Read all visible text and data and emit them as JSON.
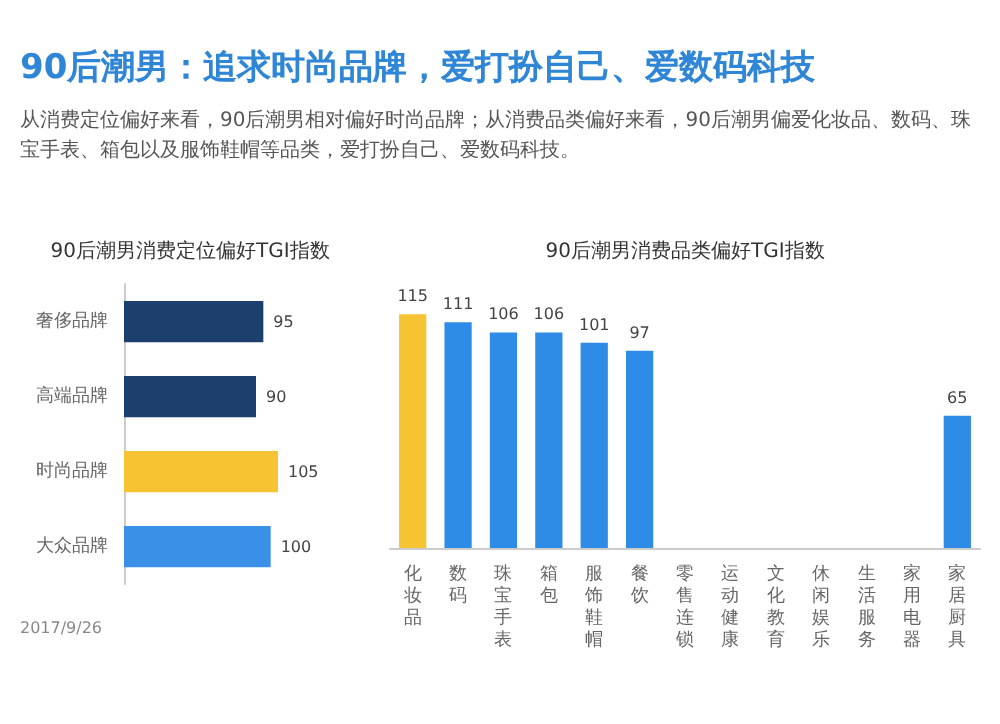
{
  "chart_data": [
    {
      "type": "other",
      "title": "90后潮男：追求时尚品牌，爱打扮自己、爱数码科技",
      "subtitle": "从消费定位偏好来看，90后潮男相对偏好时尚品牌；从消费品类偏好来看，90后潮男偏爱化妆品、数码、珠宝手表、箱包以及服饰鞋帽等品类，爱打扮自己、爱数码科技。"
    },
    {
      "type": "bar",
      "orientation": "horizontal",
      "title": "90后潮男消费定位偏好TGI指数",
      "categories": [
        "奢侈品牌",
        "高端品牌",
        "时尚品牌",
        "大众品牌"
      ],
      "values": [
        95,
        90,
        105,
        100
      ],
      "colors": [
        "#1d3f6e",
        "#1d3f6e",
        "#f6c333",
        "#3a8fe6"
      ],
      "data_labels": true,
      "annotations": [
        "2017/9/26"
      ]
    },
    {
      "type": "bar",
      "title": "90后潮男消费品类偏好TGI指数",
      "categories": [
        "化妆品",
        "数码",
        "珠宝手表",
        "箱包",
        "服饰鞋帽",
        "餐饮",
        "零售连锁",
        "运动健康",
        "文化教育",
        "休闲娱乐",
        "生活服务",
        "家用电器",
        "家居厨具"
      ],
      "values": [
        115,
        111,
        106,
        106,
        101,
        97,
        null,
        null,
        null,
        null,
        null,
        null,
        65
      ],
      "colors": [
        "#f6c333",
        "#2e8ce6",
        "#2e8ce6",
        "#2e8ce6",
        "#2e8ce6",
        "#2e8ce6",
        "#2e8ce6",
        "#2e8ce6",
        "#2e8ce6",
        "#2e8ce6",
        "#2e8ce6",
        "#2e8ce6",
        "#2e8ce6"
      ],
      "data_labels": true
    }
  ]
}
